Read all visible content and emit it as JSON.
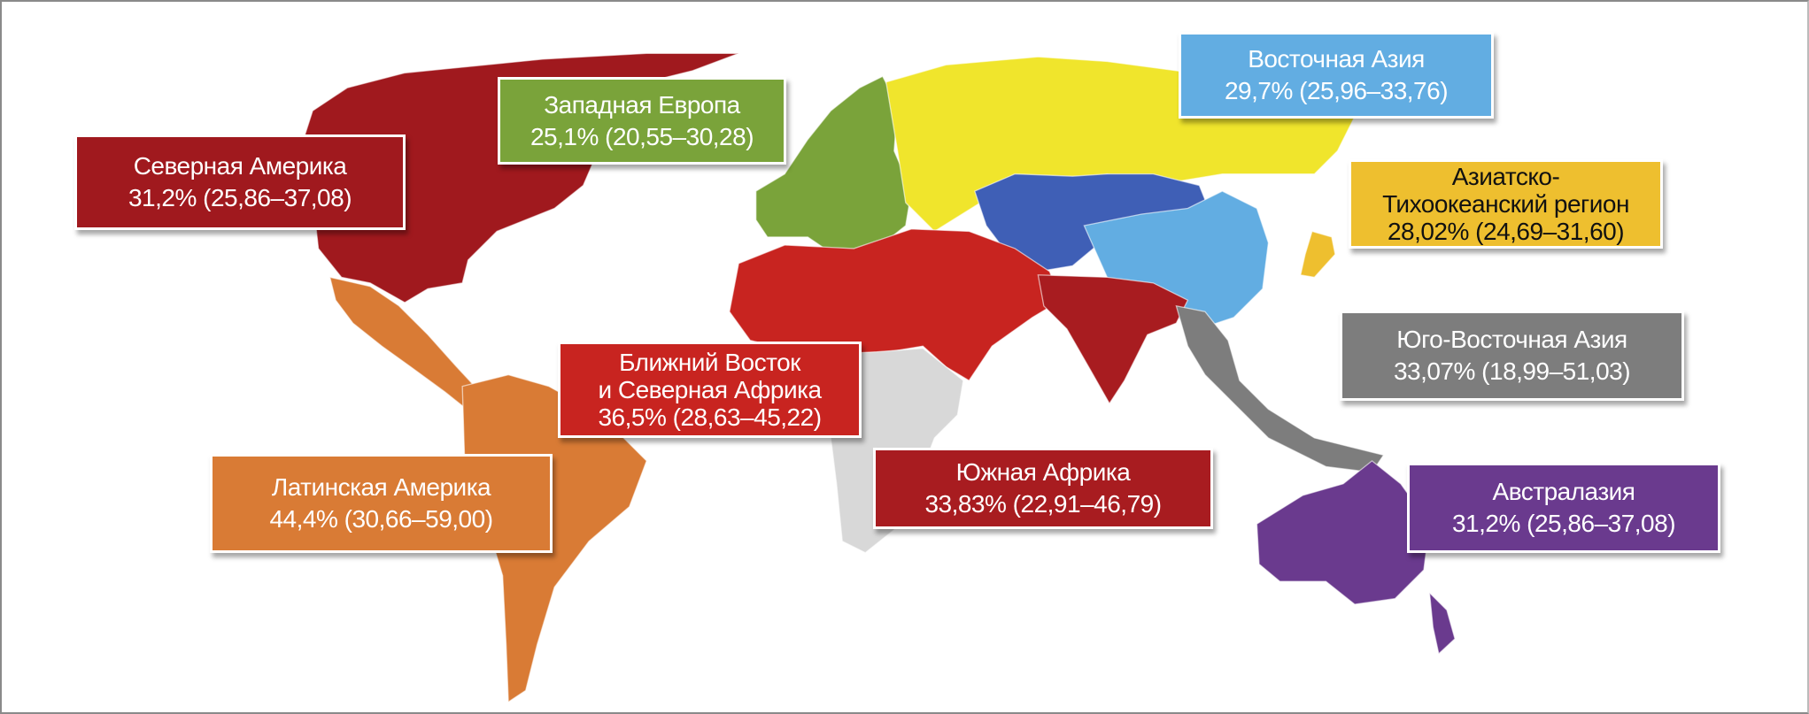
{
  "colors": {
    "north_america": "#a0191e",
    "western_europe": "#7aa33a",
    "east_asia": "#62ade2",
    "asia_pacific": "#eebf2f",
    "southeast_asia": "#7d7d7d",
    "mena": "#c82420",
    "southern_africa": "#a81c20",
    "latin_america": "#d97b35",
    "australasia": "#6a3a8e",
    "russia": "#f0e52c",
    "central_asia": "#3f5fb6",
    "no_data": "#d8d8d8"
  },
  "regions": {
    "north_america": {
      "name": "Северная Америка",
      "value": "31,2% (25,86–37,08)"
    },
    "western_europe": {
      "name": "Западная Европа",
      "value": "25,1% (20,55–30,28)"
    },
    "east_asia": {
      "name": "Восточная Азия",
      "value": "29,7% (25,96–33,76)"
    },
    "asia_pacific": {
      "name_line1": "Азиатско-",
      "name_line2": "Тихоокеанский регион",
      "value": "28,02% (24,69–31,60)"
    },
    "southeast_asia": {
      "name": "Юго-Восточная Азия",
      "value": "33,07% (18,99–51,03)"
    },
    "mena": {
      "name_line1": "Ближний Восток",
      "name_line2": "и Северная Африка",
      "value": "36,5% (28,63–45,22)"
    },
    "southern_africa": {
      "name": "Южная Африка",
      "value": "33,83% (22,91–46,79)"
    },
    "latin_america": {
      "name": "Латинская Америка",
      "value": "44,4% (30,66–59,00)"
    },
    "australasia": {
      "name": "Австралазия",
      "value": "31,2% (25,86–37,08)"
    }
  }
}
